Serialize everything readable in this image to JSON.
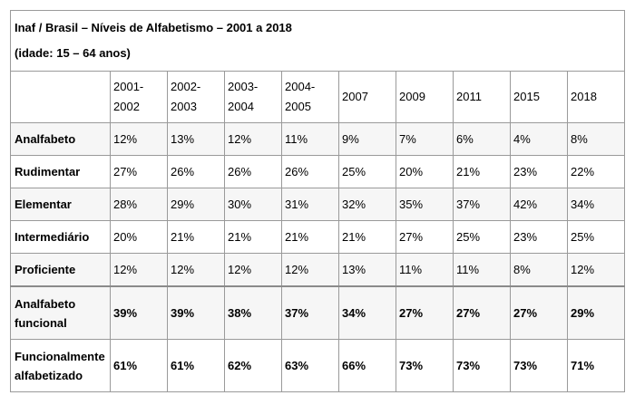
{
  "table": {
    "title_line1": "Inaf / Brasil – Níveis de Alfabetismo – 2001 a 2018",
    "title_line2": "(idade:  15 – 64 anos)",
    "columns": [
      {
        "line1": "2001-",
        "line2": "2002"
      },
      {
        "line1": "2002-",
        "line2": "2003"
      },
      {
        "line1": "2003-",
        "line2": "2004"
      },
      {
        "line1": "2004-",
        "line2": "2005"
      },
      {
        "line1": "2007",
        "line2": ""
      },
      {
        "line1": "2009",
        "line2": ""
      },
      {
        "line1": "2011",
        "line2": ""
      },
      {
        "line1": "2015",
        "line2": ""
      },
      {
        "line1": "2018",
        "line2": ""
      }
    ],
    "rows": [
      {
        "label": "Analfabeto",
        "values": [
          "12%",
          "13%",
          "12%",
          "11%",
          "9%",
          "7%",
          "6%",
          "4%",
          "8%"
        ]
      },
      {
        "label": "Rudimentar",
        "values": [
          "27%",
          "26%",
          "26%",
          "26%",
          "25%",
          "20%",
          "21%",
          "23%",
          "22%"
        ]
      },
      {
        "label": "Elementar",
        "values": [
          "28%",
          "29%",
          "30%",
          "31%",
          "32%",
          "35%",
          "37%",
          "42%",
          "34%"
        ]
      },
      {
        "label": "Intermediário",
        "values": [
          "20%",
          "21%",
          "21%",
          "21%",
          "21%",
          "27%",
          "25%",
          "23%",
          "25%"
        ]
      },
      {
        "label": "Proficiente",
        "values": [
          "12%",
          "12%",
          "12%",
          "12%",
          "13%",
          "11%",
          "11%",
          "8%",
          "12%"
        ]
      },
      {
        "label_line1": "Analfabeto",
        "label_line2": "funcional",
        "values": [
          "39%",
          "39%",
          "38%",
          "37%",
          "34%",
          "27%",
          "27%",
          "27%",
          "29%"
        ]
      },
      {
        "label_line1": "Funcionalmente",
        "label_line2": "alfabetizado",
        "values": [
          "61%",
          "61%",
          "62%",
          "63%",
          "66%",
          "73%",
          "73%",
          "73%",
          "71%"
        ]
      }
    ]
  }
}
